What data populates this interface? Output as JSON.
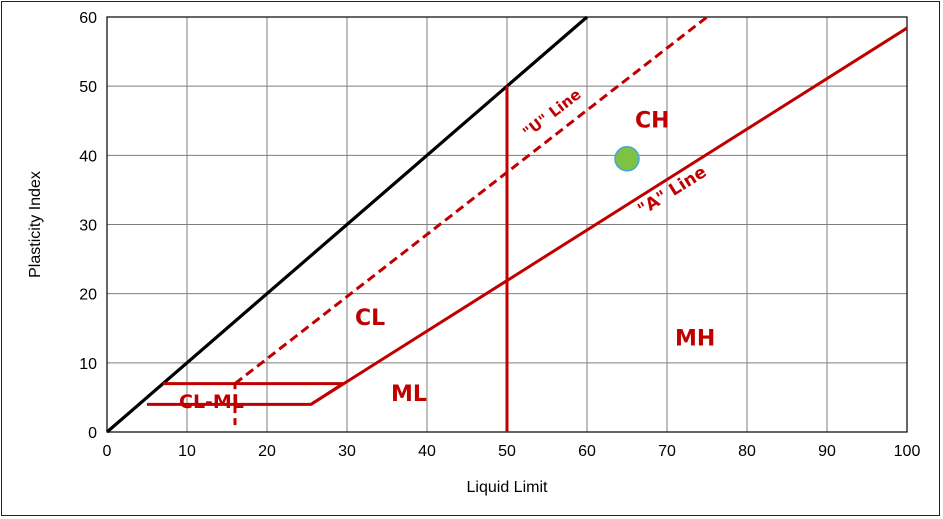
{
  "chart_data": {
    "type": "scatter",
    "title": "",
    "xlabel": "Liquid Limit",
    "ylabel": "Plasticity Index",
    "xlim": [
      0,
      100
    ],
    "ylim": [
      0,
      60
    ],
    "x_ticks": [
      "0",
      "10",
      "20",
      "30",
      "40",
      "50",
      "60",
      "70",
      "80",
      "90",
      "100"
    ],
    "y_ticks": [
      "0",
      "10",
      "20",
      "30",
      "40",
      "50",
      "60"
    ],
    "grid": true,
    "colors": {
      "zone_lines": "#c00000",
      "reference_line": "#000000",
      "point_fill": "#7dc242",
      "point_stroke": "#4aa3df",
      "grid": "#7f7f7f"
    },
    "series": [
      {
        "kind": "point",
        "points": [
          {
            "x": 65,
            "y": 39.5
          }
        ]
      },
      {
        "kind": "solid-black-line",
        "points": [
          {
            "x": 0,
            "y": 0
          },
          {
            "x": 60,
            "y": 60
          }
        ]
      },
      {
        "kind": "a-line",
        "label": "\"A\" Line",
        "points": [
          {
            "x": 25.5,
            "y": 4
          },
          {
            "x": 100,
            "y": 58.4
          }
        ]
      },
      {
        "kind": "u-line",
        "label": "\"U\" Line",
        "points": [
          {
            "x": 16,
            "y": 7
          },
          {
            "x": 75,
            "y": 60
          }
        ]
      },
      {
        "kind": "ll50-line",
        "points": [
          {
            "x": 50,
            "y": 0
          },
          {
            "x": 50,
            "y": 50
          }
        ]
      },
      {
        "kind": "cl-ml-band",
        "points": [
          {
            "x": 5,
            "y": 4
          },
          {
            "x": 25.5,
            "y": 4
          },
          {
            "x": 29.5,
            "y": 7
          },
          {
            "x": 7,
            "y": 7
          }
        ]
      },
      {
        "kind": "u-dash-extension",
        "points": [
          {
            "x": 16,
            "y": 1
          },
          {
            "x": 16,
            "y": 7
          }
        ]
      }
    ],
    "annotations": [
      {
        "text": "CH",
        "x": 66,
        "y": 44
      },
      {
        "text": "CL",
        "x": 31,
        "y": 15.5
      },
      {
        "text": "MH",
        "x": 71,
        "y": 12.5
      },
      {
        "text": "ML",
        "x": 35.5,
        "y": 4.5
      },
      {
        "text": "CL-ML",
        "x": 9,
        "y": 3.5
      }
    ]
  }
}
